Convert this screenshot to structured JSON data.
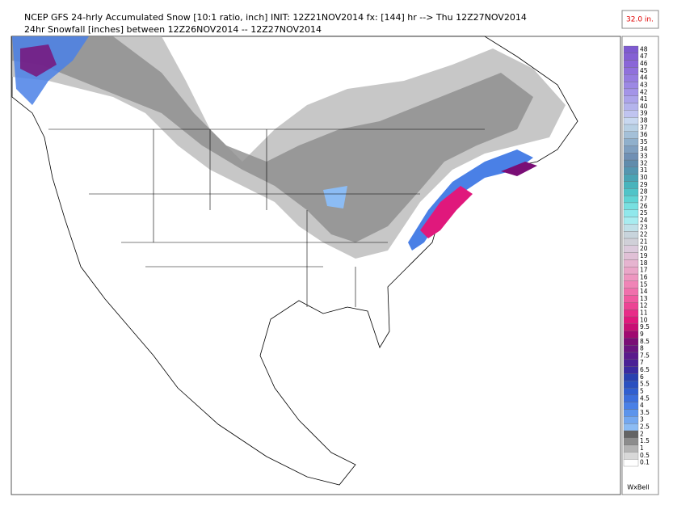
{
  "header": {
    "title_line1": "NCEP GFS 24-hrly Accumulated Snow [10:1 ratio, inch] INIT: 12Z21NOV2014 fx: [144] hr --> Thu 12Z27NOV2014",
    "title_line2": "24hr Snowfall [inches] between 12Z26NOV2014 -- 12Z27NOV2014"
  },
  "max_label": "32.0 in.",
  "credit": "WxBell",
  "legend": {
    "items": [
      {
        "label": "0.1",
        "color": "#ffffff"
      },
      {
        "label": "0.5",
        "color": "#d8d8d8"
      },
      {
        "label": "1",
        "color": "#b4b4b4"
      },
      {
        "label": "1.5",
        "color": "#8c8c8c"
      },
      {
        "label": "2",
        "color": "#646464"
      },
      {
        "label": "2.5",
        "color": "#8cbcf4"
      },
      {
        "label": "3",
        "color": "#74a8f0"
      },
      {
        "label": "3.5",
        "color": "#5c94ec"
      },
      {
        "label": "4",
        "color": "#4a80e6"
      },
      {
        "label": "4.5",
        "color": "#3c6edc"
      },
      {
        "label": "5",
        "color": "#305ed0"
      },
      {
        "label": "5.5",
        "color": "#2a50c0"
      },
      {
        "label": "6",
        "color": "#2840b0"
      },
      {
        "label": "6.5",
        "color": "#3a2aa0"
      },
      {
        "label": "7",
        "color": "#4a2096"
      },
      {
        "label": "7.5",
        "color": "#5a1a8c"
      },
      {
        "label": "8",
        "color": "#6a1480"
      },
      {
        "label": "8.5",
        "color": "#7a0e76"
      },
      {
        "label": "9",
        "color": "#a00a70"
      },
      {
        "label": "9.5",
        "color": "#c80e74"
      },
      {
        "label": "10",
        "color": "#e0187c"
      },
      {
        "label": "11",
        "color": "#e82c88"
      },
      {
        "label": "12",
        "color": "#ec4494"
      },
      {
        "label": "13",
        "color": "#f05aa0"
      },
      {
        "label": "14",
        "color": "#f070ac"
      },
      {
        "label": "15",
        "color": "#f084b6"
      },
      {
        "label": "16",
        "color": "#ee96c0"
      },
      {
        "label": "17",
        "color": "#eaa6c8"
      },
      {
        "label": "18",
        "color": "#e6b4d0"
      },
      {
        "label": "19",
        "color": "#e0c0d6"
      },
      {
        "label": "20",
        "color": "#dccadc"
      },
      {
        "label": "21",
        "color": "#d0d0d8"
      },
      {
        "label": "22",
        "color": "#c8d4dc"
      },
      {
        "label": "23",
        "color": "#c0e0e8"
      },
      {
        "label": "24",
        "color": "#a8ecf0"
      },
      {
        "label": "25",
        "color": "#90e8ec"
      },
      {
        "label": "26",
        "color": "#78e0e0"
      },
      {
        "label": "27",
        "color": "#60d4d4"
      },
      {
        "label": "28",
        "color": "#50c4c8"
      },
      {
        "label": "29",
        "color": "#48b4bc"
      },
      {
        "label": "30",
        "color": "#4aa4b4"
      },
      {
        "label": "31",
        "color": "#5496b0"
      },
      {
        "label": "32",
        "color": "#608cac"
      },
      {
        "label": "33",
        "color": "#7090b4"
      },
      {
        "label": "34",
        "color": "#80a0c0"
      },
      {
        "label": "35",
        "color": "#90b0cc"
      },
      {
        "label": "36",
        "color": "#a4c0d8"
      },
      {
        "label": "37",
        "color": "#b8d0e4"
      },
      {
        "label": "38",
        "color": "#c8d8f0"
      },
      {
        "label": "39",
        "color": "#c0c4f0"
      },
      {
        "label": "40",
        "color": "#b4b4ec"
      },
      {
        "label": "41",
        "color": "#aca4ea"
      },
      {
        "label": "42",
        "color": "#a494e8"
      },
      {
        "label": "43",
        "color": "#9c88e4"
      },
      {
        "label": "44",
        "color": "#967ce0"
      },
      {
        "label": "45",
        "color": "#9070dc"
      },
      {
        "label": "46",
        "color": "#8a66d8"
      },
      {
        "label": "47",
        "color": "#8460d4"
      },
      {
        "label": "48",
        "color": "#7e5ad0"
      }
    ]
  }
}
